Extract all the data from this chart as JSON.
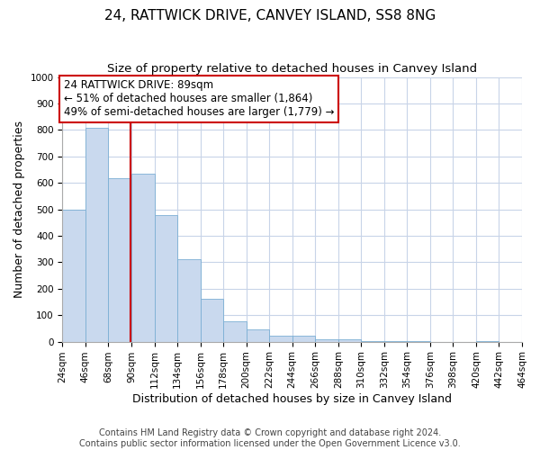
{
  "title": "24, RATTWICK DRIVE, CANVEY ISLAND, SS8 8NG",
  "subtitle": "Size of property relative to detached houses in Canvey Island",
  "xlabel": "Distribution of detached houses by size in Canvey Island",
  "ylabel": "Number of detached properties",
  "bin_edges": [
    24,
    46,
    68,
    90,
    112,
    134,
    156,
    178,
    200,
    222,
    244,
    266,
    288,
    310,
    332,
    354,
    376,
    398,
    420,
    442,
    464
  ],
  "bar_heights": [
    500,
    808,
    618,
    635,
    478,
    310,
    162,
    77,
    45,
    22,
    22,
    10,
    8,
    3,
    2,
    1,
    0,
    0,
    1,
    0
  ],
  "bar_color": "#c9d9ee",
  "bar_edge_color": "#7bafd4",
  "vline_x": 89,
  "vline_color": "#cc0000",
  "annotation_title": "24 RATTWICK DRIVE: 89sqm",
  "annotation_line1": "← 51% of detached houses are smaller (1,864)",
  "annotation_line2": "49% of semi-detached houses are larger (1,779) →",
  "annotation_box_edge": "#cc0000",
  "ylim": [
    0,
    1000
  ],
  "yticks": [
    0,
    100,
    200,
    300,
    400,
    500,
    600,
    700,
    800,
    900,
    1000
  ],
  "xtick_labels": [
    "24sqm",
    "46sqm",
    "68sqm",
    "90sqm",
    "112sqm",
    "134sqm",
    "156sqm",
    "178sqm",
    "200sqm",
    "222sqm",
    "244sqm",
    "266sqm",
    "288sqm",
    "310sqm",
    "332sqm",
    "354sqm",
    "376sqm",
    "398sqm",
    "420sqm",
    "442sqm",
    "464sqm"
  ],
  "footer_line1": "Contains HM Land Registry data © Crown copyright and database right 2024.",
  "footer_line2": "Contains public sector information licensed under the Open Government Licence v3.0.",
  "background_color": "#ffffff",
  "grid_color": "#c8d4e8",
  "title_fontsize": 11,
  "subtitle_fontsize": 9.5,
  "axis_label_fontsize": 9,
  "tick_fontsize": 7.5,
  "footer_fontsize": 7,
  "annotation_fontsize": 8.5
}
